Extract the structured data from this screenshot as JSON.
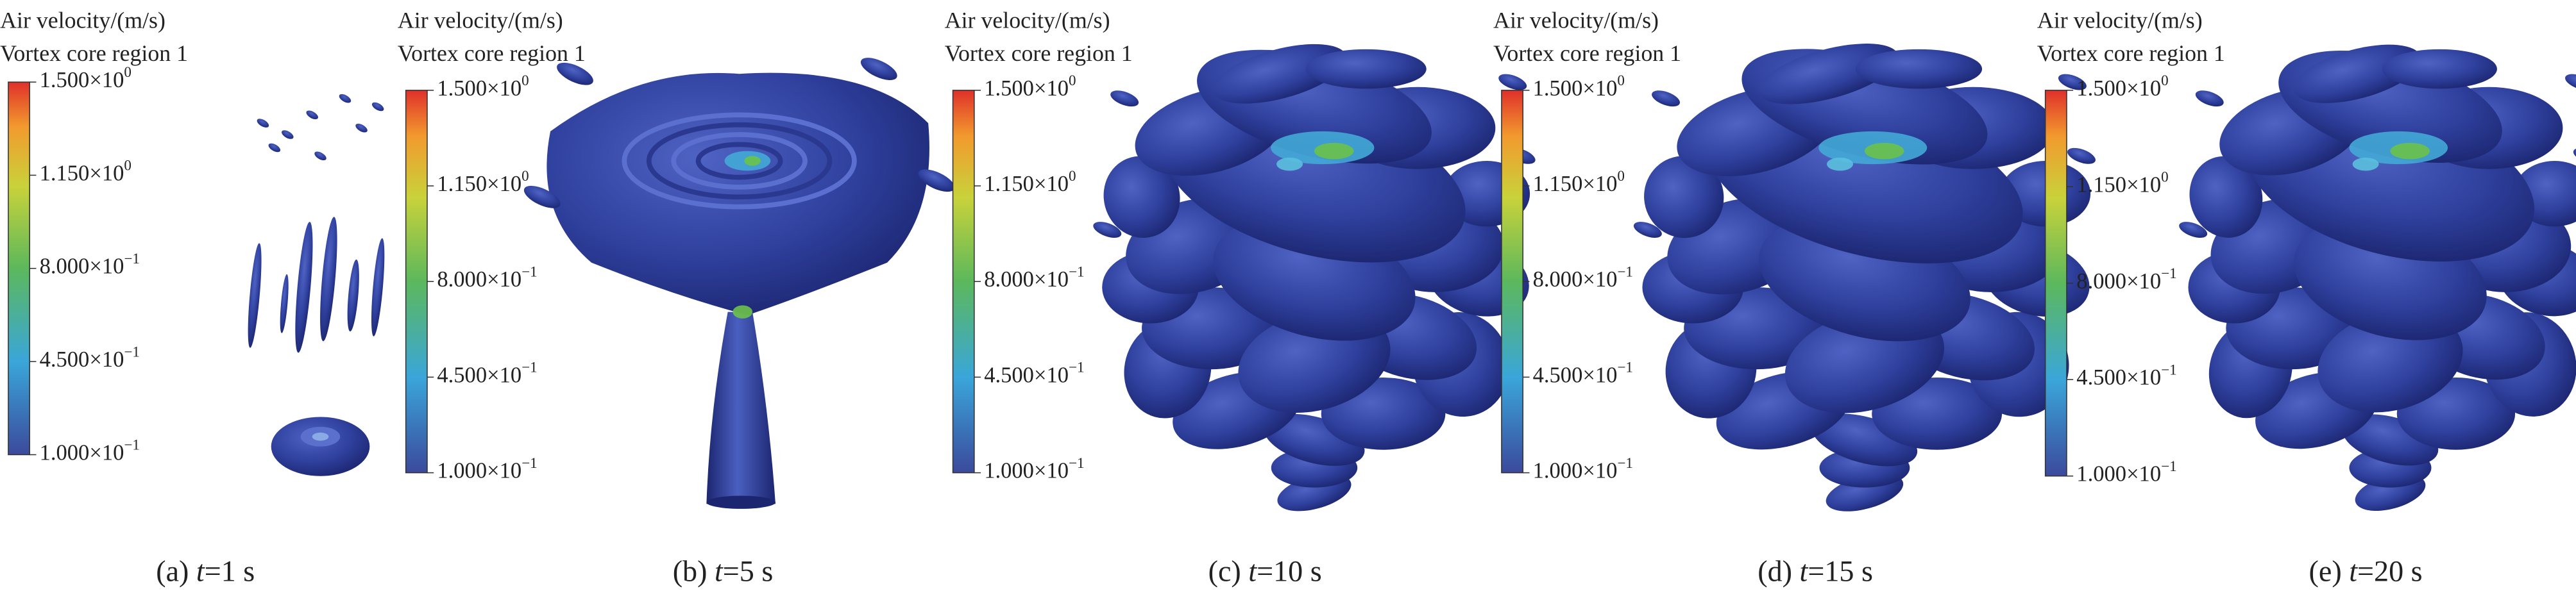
{
  "panels": [
    {
      "legend_title": "Air velocity/(m/s)",
      "legend_subtitle": "Vortex core region 1",
      "ticks": [
        {
          "base": "1.500×10",
          "exponent": "0"
        },
        {
          "base": "1.150×10",
          "exponent": "0"
        },
        {
          "base": "8.000×10",
          "exponent": "−1"
        },
        {
          "base": "4.500×10",
          "exponent": "−1"
        },
        {
          "base": "1.000×10",
          "exponent": "−1"
        }
      ],
      "caption": {
        "label": "(a)",
        "variable": "t",
        "value": "=1 s"
      }
    },
    {
      "legend_title": "Air velocity/(m/s)",
      "legend_subtitle": "Vortex core region 1",
      "ticks": [
        {
          "base": "1.500×10",
          "exponent": "0"
        },
        {
          "base": "1.150×10",
          "exponent": "0"
        },
        {
          "base": "8.000×10",
          "exponent": "−1"
        },
        {
          "base": "4.500×10",
          "exponent": "−1"
        },
        {
          "base": "1.000×10",
          "exponent": "−1"
        }
      ],
      "caption": {
        "label": "(b)",
        "variable": "t",
        "value": "=5 s"
      }
    },
    {
      "legend_title": "Air velocity/(m/s)",
      "legend_subtitle": "Vortex core region 1",
      "ticks": [
        {
          "base": "1.500×10",
          "exponent": "0"
        },
        {
          "base": "1.150×10",
          "exponent": "0"
        },
        {
          "base": "8.000×10",
          "exponent": "−1"
        },
        {
          "base": "4.500×10",
          "exponent": "−1"
        },
        {
          "base": "1.000×10",
          "exponent": "−1"
        }
      ],
      "caption": {
        "label": "(c)",
        "variable": "t",
        "value": "=10 s"
      }
    },
    {
      "legend_title": "Air velocity/(m/s)",
      "legend_subtitle": "Vortex core region 1",
      "ticks": [
        {
          "base": "1.500×10",
          "exponent": "0"
        },
        {
          "base": "1.150×10",
          "exponent": "0"
        },
        {
          "base": "8.000×10",
          "exponent": "−1"
        },
        {
          "base": "4.500×10",
          "exponent": "−1"
        },
        {
          "base": "1.000×10",
          "exponent": "−1"
        }
      ],
      "caption": {
        "label": "(d)",
        "variable": "t",
        "value": "=15 s"
      }
    },
    {
      "legend_title": "Air velocity/(m/s)",
      "legend_subtitle": "Vortex core region 1",
      "ticks": [
        {
          "base": "1.500×10",
          "exponent": "0"
        },
        {
          "base": "1.150×10",
          "exponent": "0"
        },
        {
          "base": "8.000×10",
          "exponent": "−1"
        },
        {
          "base": "4.500×10",
          "exponent": "−1"
        },
        {
          "base": "1.000×10",
          "exponent": "−1"
        }
      ],
      "caption": {
        "label": "(e)",
        "variable": "t",
        "value": "=20 s"
      }
    }
  ]
}
